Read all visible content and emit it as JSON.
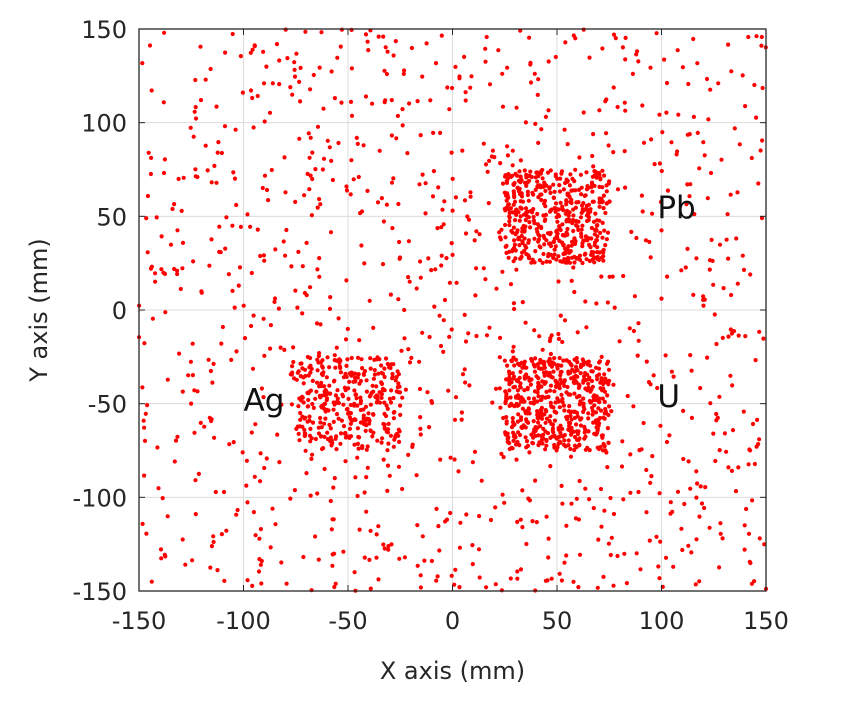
{
  "chart_data": {
    "type": "scatter",
    "title": "",
    "xlabel": "X axis (mm)",
    "ylabel": "Y axis (mm)",
    "xlim": [
      -150,
      150
    ],
    "ylim": [
      -150,
      150
    ],
    "xticks": [
      -150,
      -100,
      -50,
      0,
      50,
      100,
      150
    ],
    "yticks": [
      -150,
      -100,
      -50,
      0,
      50,
      100,
      150
    ],
    "grid": true,
    "marker_color": "#ff0000",
    "annotations": [
      {
        "text": "Pb",
        "x": 98,
        "y": 55
      },
      {
        "text": "U",
        "x": 98,
        "y": -46
      },
      {
        "text": "Ag",
        "x": -100,
        "y": -48
      }
    ],
    "point_groups": [
      {
        "description": "background",
        "x_range": [
          -150,
          150
        ],
        "y_range": [
          -150,
          150
        ],
        "count": 1100
      },
      {
        "description": "cluster",
        "x_range": [
          25,
          75
        ],
        "y_range": [
          25,
          75
        ],
        "count": 450
      },
      {
        "description": "cluster",
        "x_range": [
          25,
          75
        ],
        "y_range": [
          -75,
          -25
        ],
        "count": 500
      },
      {
        "description": "cluster",
        "x_range": [
          -75,
          -25
        ],
        "y_range": [
          -75,
          -25
        ],
        "count": 320
      }
    ]
  }
}
